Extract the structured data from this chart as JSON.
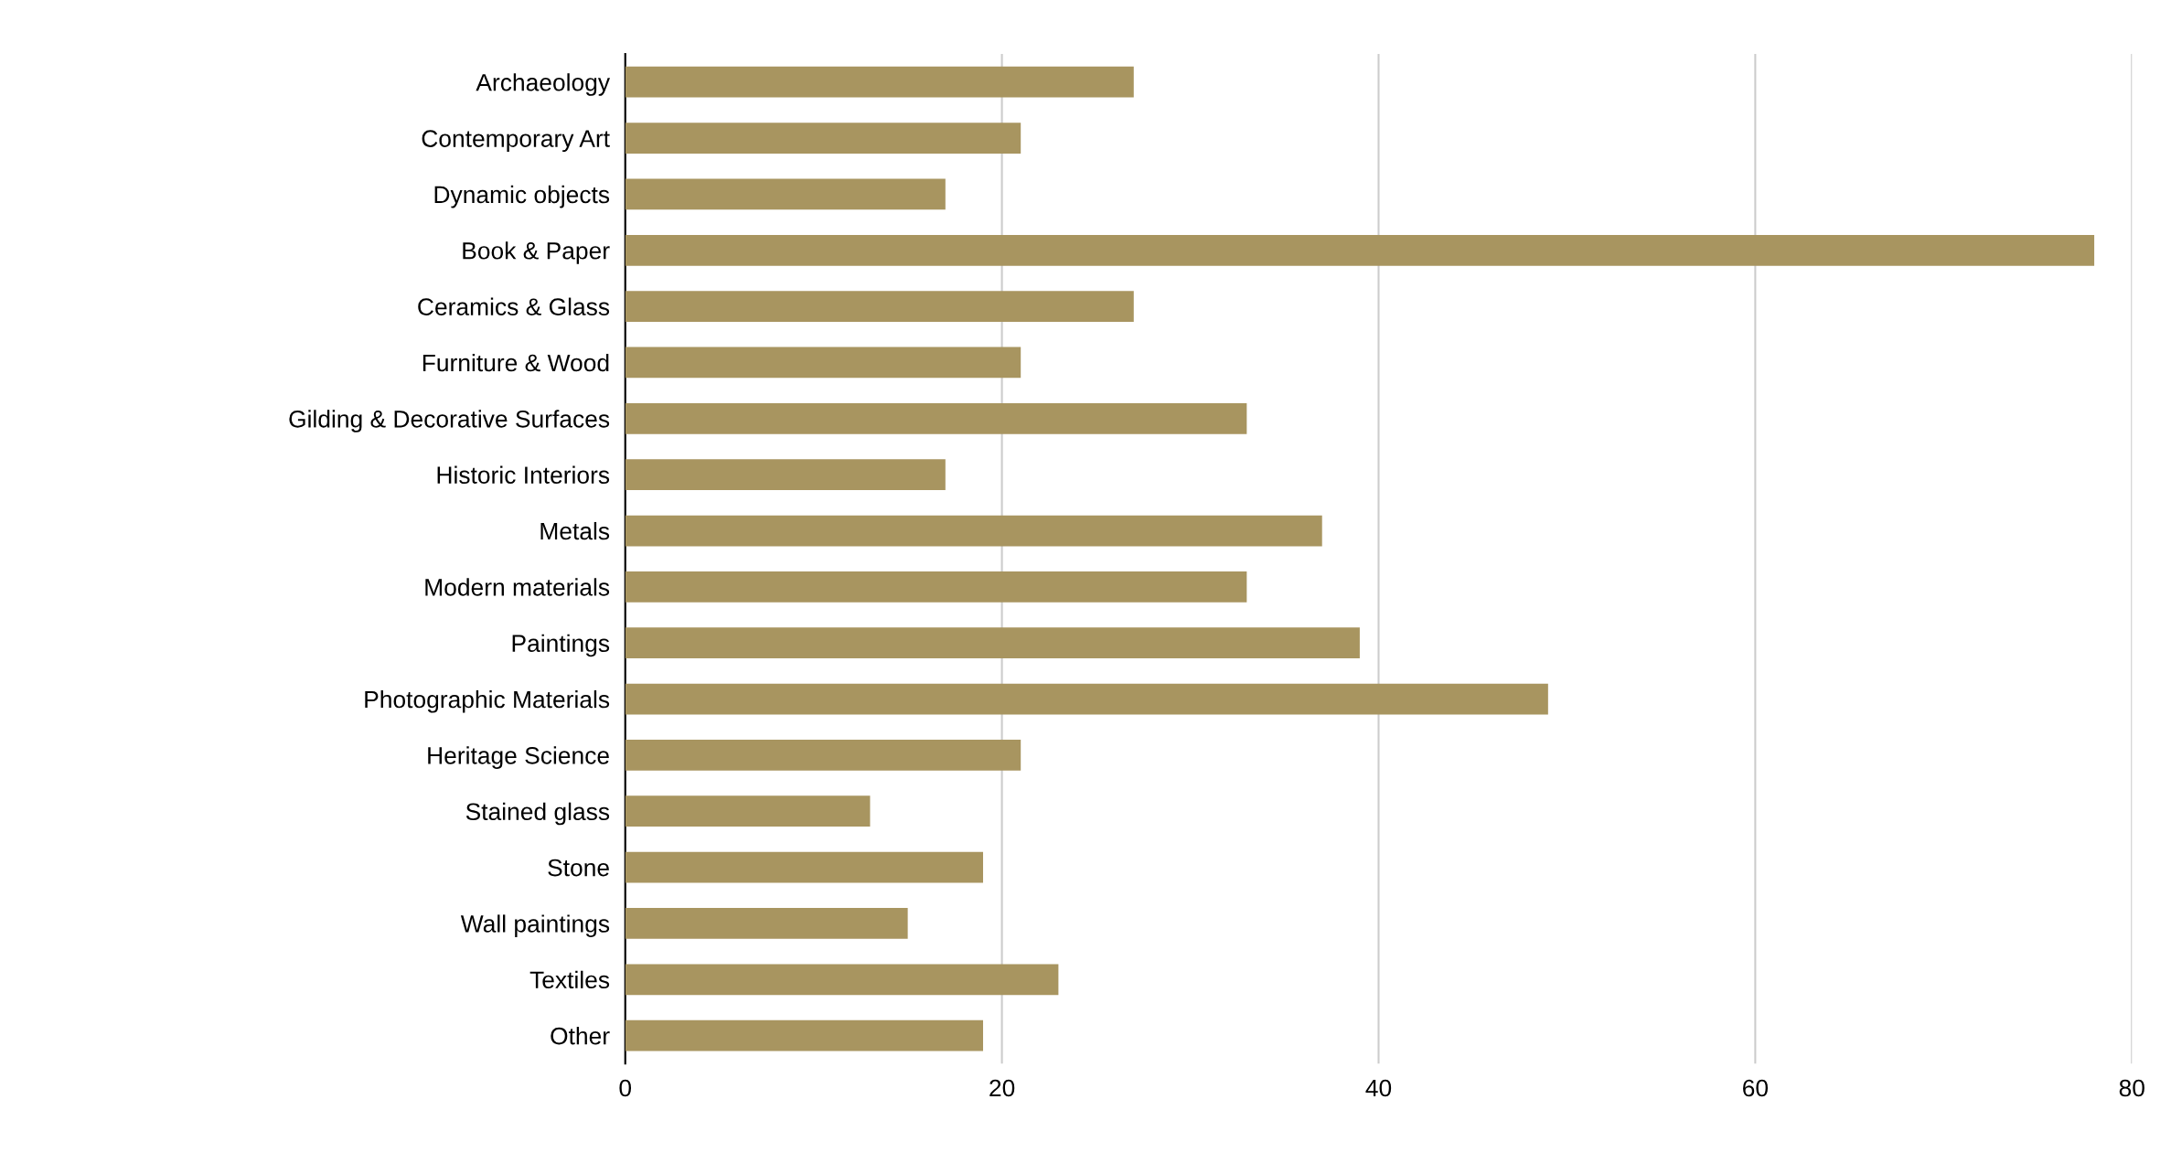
{
  "chart_data": {
    "type": "bar",
    "orientation": "horizontal",
    "categories": [
      "Archaeology",
      "Contemporary Art",
      "Dynamic objects",
      "Book & Paper",
      "Ceramics & Glass",
      "Furniture & Wood",
      "Gilding & Decorative Surfaces",
      "Historic Interiors",
      "Metals",
      "Modern materials",
      "Paintings",
      "Photographic Materials",
      "Heritage Science",
      "Stained glass",
      "Stone",
      "Wall paintings",
      "Textiles",
      "Other"
    ],
    "values": [
      27,
      21,
      17,
      78,
      27,
      21,
      33,
      17,
      37,
      33,
      39,
      49,
      21,
      13,
      19,
      15,
      23,
      19
    ],
    "color": "#a89560",
    "xlim": [
      0,
      80
    ],
    "xticks": [
      0,
      20,
      40,
      60,
      80
    ],
    "grid": "x",
    "legend": false
  }
}
